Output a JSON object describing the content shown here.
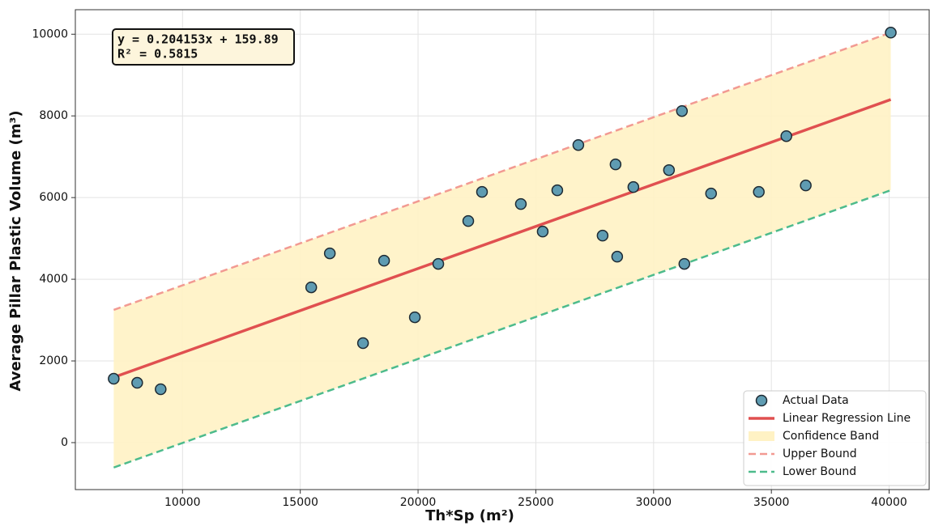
{
  "chart_data": {
    "type": "scatter",
    "xlabel": "Th*Sp (m²)",
    "ylabel": "Average Pillar Plastic Volume (m³)",
    "annotation": [
      "y = 0.204153x + 159.89",
      "R² = 0.5815"
    ],
    "xlim": [
      5450,
      41700
    ],
    "ylim": [
      -1150,
      10600
    ],
    "xticks": [
      10000,
      15000,
      20000,
      25000,
      30000,
      35000,
      40000
    ],
    "yticks": [
      0,
      2000,
      4000,
      6000,
      8000,
      10000
    ],
    "grid": true,
    "legend": "lower right",
    "series": [
      {
        "name": "Actual Data",
        "type": "scatter",
        "color": "#5f9cb2",
        "x": [
          7079,
          8076,
          9072,
          15464,
          16254,
          17663,
          18557,
          19863,
          20859,
          22131,
          22715,
          24364,
          25292,
          25911,
          26804,
          27835,
          28385,
          28454,
          29141,
          30653,
          31203,
          31306,
          32440,
          34467,
          35636,
          36460,
          40069
        ],
        "values": [
          1564,
          1465,
          1307,
          3802,
          4634,
          2436,
          4455,
          3069,
          4376,
          5426,
          6139,
          5842,
          5168,
          6178,
          7287,
          5069,
          6812,
          4554,
          6257,
          6673,
          8119,
          4376,
          6099,
          6139,
          7505,
          6297,
          10040
        ]
      },
      {
        "name": "Linear Regression Line",
        "type": "line",
        "color": "#e05050",
        "dash": false,
        "x": [
          7079,
          40069
        ],
        "values": [
          1600,
          8400
        ]
      },
      {
        "name": "Confidence Band",
        "type": "band",
        "color": "#fff2c4",
        "x": [
          7079,
          40069
        ],
        "low": [
          -610,
          6180
        ],
        "high": [
          3250,
          10040
        ]
      },
      {
        "name": "Upper Bound",
        "type": "line",
        "color": "#f29a92",
        "dash": true,
        "x": [
          7079,
          40069
        ],
        "values": [
          3250,
          10040
        ]
      },
      {
        "name": "Lower Bound",
        "type": "line",
        "color": "#4dbb8c",
        "dash": true,
        "x": [
          7079,
          40069
        ],
        "values": [
          -610,
          6180
        ]
      }
    ]
  }
}
